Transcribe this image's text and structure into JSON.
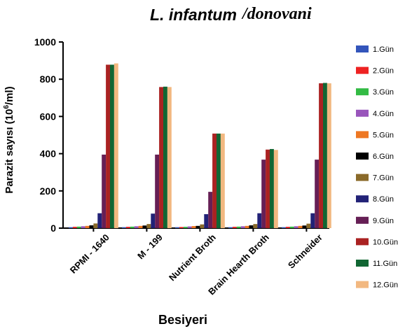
{
  "chart_data": {
    "type": "bar",
    "title_part1": "L. infantum",
    "title_part2": "/donovani",
    "ylabel_prefix": "Parazit sayısı (10",
    "ylabel_sup": "6",
    "ylabel_suffix": "/ml)",
    "xlabel": "Besiyeri",
    "ylim": [
      0,
      1000
    ],
    "yticks": [
      "0",
      "200",
      "400",
      "600",
      "800",
      "1000"
    ],
    "categories": [
      "RPMI - 1640",
      "M - 199",
      "Nutrient Broth",
      "Brain Hearth Broth",
      "Schneider"
    ],
    "legend_position": "right",
    "grid": false,
    "series": [
      {
        "name": "1.Gün",
        "color": "#3355bb",
        "values": [
          5,
          5,
          5,
          5,
          5
        ]
      },
      {
        "name": "2.Gün",
        "color": "#ee2222",
        "values": [
          7,
          7,
          6,
          7,
          7
        ]
      },
      {
        "name": "3.Gün",
        "color": "#33bb44",
        "values": [
          8,
          8,
          7,
          8,
          8
        ]
      },
      {
        "name": "4.Gün",
        "color": "#9955bb",
        "values": [
          10,
          10,
          9,
          10,
          10
        ]
      },
      {
        "name": "5.Gün",
        "color": "#ee7722",
        "values": [
          12,
          12,
          11,
          12,
          12
        ]
      },
      {
        "name": "6.Gün",
        "color": "#000000",
        "values": [
          15,
          14,
          12,
          15,
          14
        ]
      },
      {
        "name": "7.Gün",
        "color": "#8a6a2a",
        "values": [
          25,
          22,
          20,
          22,
          24
        ]
      },
      {
        "name": "8.Gün",
        "color": "#222277",
        "values": [
          80,
          78,
          75,
          80,
          80
        ]
      },
      {
        "name": "9.Gün",
        "color": "#661f55",
        "values": [
          395,
          395,
          195,
          368,
          368
        ]
      },
      {
        "name": "10.Gün",
        "color": "#aa2222",
        "values": [
          878,
          758,
          508,
          422,
          778
        ]
      },
      {
        "name": "11.Gün",
        "color": "#116633",
        "values": [
          878,
          760,
          508,
          425,
          780
        ]
      },
      {
        "name": "12.Gün",
        "color": "#f2b880",
        "values": [
          885,
          758,
          508,
          420,
          778
        ]
      }
    ]
  }
}
